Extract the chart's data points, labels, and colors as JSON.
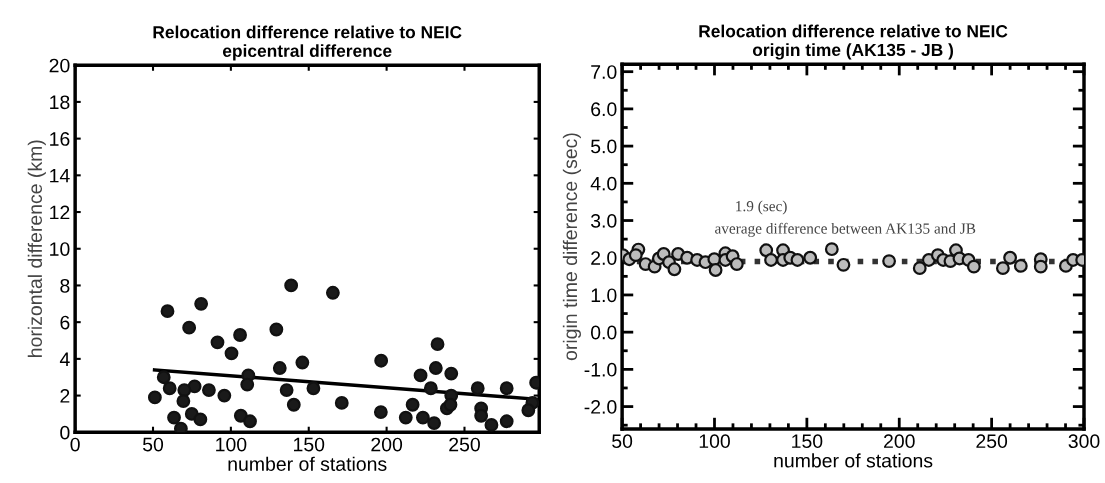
{
  "chart_data": [
    {
      "type": "scatter",
      "title": "Relocation difference relative to NEIC\nepicentral difference",
      "xlabel": "number of stations",
      "ylabel": "horizontal difference (km)",
      "xlim": [
        0,
        298
      ],
      "xticks": [
        0,
        50,
        100,
        150,
        200,
        250
      ],
      "ylim": [
        0,
        20
      ],
      "yticks": [
        0,
        2,
        4,
        6,
        8,
        10,
        12,
        14,
        16,
        18,
        20
      ],
      "grid": false,
      "marker": "circle",
      "series": [
        {
          "color": "#1a1a1a",
          "x": [
            59.3,
            80.9,
            73.2,
            91.4,
            105.9,
            100.4,
            129.2,
            138.7,
            165.5,
            131.4,
            145.9,
            196.5,
            232.7,
            231.6,
            241.5,
            221.8,
            228.4,
            241.5,
            238.7,
            241,
            258.5,
            277.1,
            296,
            293.6,
            291,
            260.7,
            260.7,
            267.3,
            277.1,
            212.3,
            216.7,
            223.3,
            230.5,
            196.3,
            171.2,
            153,
            135.8,
            140.4,
            111.2,
            110.5,
            106.4,
            112.3,
            95.8,
            85.9,
            76.7,
            70.1,
            69.5,
            74.9,
            80.4,
            63.5,
            67.9,
            60.7,
            56.9,
            51.2
          ],
          "values": [
            6.6,
            7.0,
            5.7,
            4.9,
            5.3,
            4.3,
            5.6,
            8.0,
            7.6,
            3.5,
            3.8,
            3.9,
            4.8,
            3.5,
            3.2,
            3.1,
            2.4,
            2.0,
            1.3,
            1.5,
            2.4,
            2.4,
            2.7,
            1.6,
            1.2,
            1.3,
            0.9,
            0.4,
            0.6,
            0.8,
            1.5,
            0.8,
            0.5,
            1.1,
            1.6,
            2.4,
            2.3,
            1.5,
            3.1,
            2.6,
            0.9,
            0.6,
            2.0,
            2.3,
            2.5,
            2.3,
            1.7,
            1.0,
            0.7,
            0.8,
            0.2,
            2.4,
            3.0,
            1.9
          ]
        },
        {
          "type": "line",
          "color": "#000000",
          "line_style": "solid",
          "marker": "none",
          "x": [
            51,
            296
          ],
          "values": [
            3.4,
            1.8
          ]
        }
      ]
    },
    {
      "type": "scatter",
      "title": "Relocation difference relative to NEIC\norigin time (AK135 - JB )",
      "xlabel": "number of stations",
      "ylabel": "origin time difference (sec)",
      "xlim": [
        50,
        300
      ],
      "xticks": [
        50,
        100,
        150,
        200,
        250,
        300
      ],
      "ylim": [
        -2.6,
        7.2
      ],
      "yticks": [
        {
          "value": -2,
          "label": "-2.0"
        },
        {
          "value": -1,
          "label": "-1.0"
        },
        {
          "value": 0,
          "label": "0.0"
        },
        {
          "value": 1,
          "label": "1.0"
        },
        {
          "value": 2,
          "label": "2.0"
        },
        {
          "value": 3,
          "label": "3.0"
        },
        {
          "value": 4,
          "label": "4.0"
        },
        {
          "value": 5,
          "label": "5.0"
        },
        {
          "value": 6,
          "label": "6.0"
        },
        {
          "value": 7,
          "label": "7.0"
        }
      ],
      "grid": false,
      "marker": "circle",
      "ref_lines": [
        {
          "axis": "y",
          "value": 1.9,
          "label": "1.9 (sec)",
          "line_style": "dotted",
          "color": "#333333"
        }
      ],
      "annotations": [
        {
          "text": "average difference between AK135 and JB",
          "x": 100,
          "y": 1.9
        }
      ],
      "series": [
        {
          "color": "#bcbcbc",
          "x": [
            50.4,
            53.9,
            58.8,
            57.4,
            62.7,
            67.6,
            69.9,
            72.5,
            75.4,
            78.3,
            80.3,
            85.2,
            90.6,
            95.1,
            99.9,
            100.6,
            105.9,
            105.9,
            109.8,
            112.1,
            128,
            130.6,
            137.1,
            137.1,
            141,
            144.9,
            151.8,
            163.5,
            169.8,
            194.5,
            211.1,
            216,
            220.9,
            223.8,
            227.7,
            230.7,
            232.6,
            237.5,
            240.4,
            256.1,
            260,
            265.8,
            276.6,
            276.6,
            290.2,
            294.1,
            299
          ],
          "values": [
            2.07,
            1.96,
            2.22,
            2.07,
            1.83,
            1.76,
            1.98,
            2.1,
            1.88,
            1.69,
            2.1,
            2.0,
            1.94,
            1.88,
            1.96,
            1.67,
            2.12,
            1.94,
            2.04,
            1.83,
            2.2,
            1.94,
            2.2,
            1.94,
            2.0,
            1.94,
            2.0,
            2.23,
            1.81,
            1.91,
            1.72,
            1.94,
            2.07,
            1.94,
            1.91,
            2.2,
            1.98,
            1.94,
            1.76,
            1.72,
            2.0,
            1.78,
            1.96,
            1.76,
            1.78,
            1.94,
            1.94
          ]
        }
      ]
    }
  ]
}
